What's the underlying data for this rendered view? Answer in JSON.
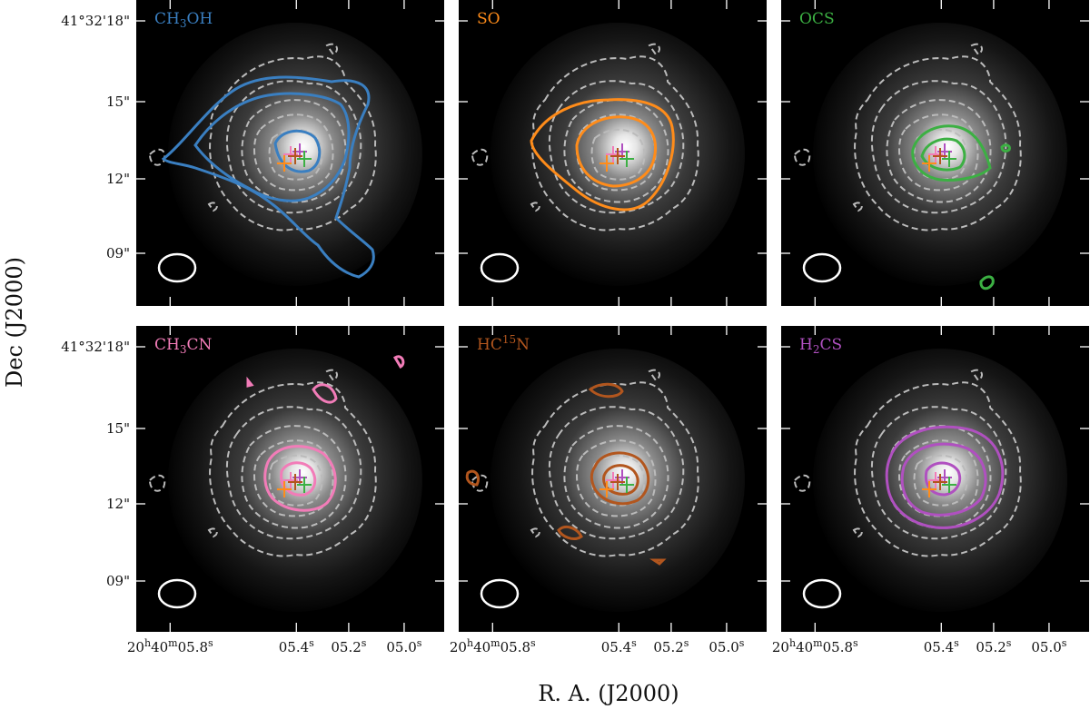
{
  "figure": {
    "xlabel": "R. A. (J2000)",
    "ylabel": "Dec (J2000)",
    "x_ticks": [
      {
        "h": "20",
        "m": "40",
        "s": "05.8",
        "sup": "s",
        "full": true,
        "ra_s": 5.8
      },
      {
        "label": "05.4",
        "sup": "s",
        "ra_s": 5.4
      },
      {
        "label": "05.2",
        "sup": "s",
        "ra_s": 5.2
      },
      {
        "label": "05.0",
        "sup": "s",
        "ra_s": 5.0
      }
    ],
    "y_ticks": [
      "41°32'18\"",
      "15\"",
      "12\"",
      "09\""
    ],
    "y_tick_arcsec": [
      18,
      15,
      12,
      9
    ]
  },
  "colors": {
    "CH3OH": "#3a7fc1",
    "SO": "#ff8c1a",
    "OCS": "#3cb043",
    "CH3CN": "#f27cb8",
    "HC15N": "#b2561e",
    "H2CS": "#b050c0",
    "dust_contour": "#bbbbbb",
    "beam": "#ffffff"
  },
  "chart_data": [
    {
      "type": "contour",
      "panel": 1,
      "molecule": "CH3OH",
      "label_main": "CH",
      "label_sub": "3",
      "label_rest": "OH",
      "color": "#3a7fc1",
      "contour_levels": 3
    },
    {
      "type": "contour",
      "panel": 2,
      "molecule": "SO",
      "label_main": "SO",
      "label_sub": "",
      "label_rest": "",
      "color": "#ff8c1a",
      "contour_levels": 2
    },
    {
      "type": "contour",
      "panel": 3,
      "molecule": "OCS",
      "label_main": "OCS",
      "label_sub": "",
      "label_rest": "",
      "color": "#3cb043",
      "contour_levels": 2
    },
    {
      "type": "contour",
      "panel": 4,
      "molecule": "CH3CN",
      "label_main": "CH",
      "label_sub": "3",
      "label_rest": "CN",
      "color": "#f27cb8",
      "contour_levels": 2
    },
    {
      "type": "contour",
      "panel": 5,
      "molecule": "HC15N",
      "label_main": "HC",
      "label_sup": "15",
      "label_rest": "N",
      "color": "#b2561e",
      "contour_levels": 2
    },
    {
      "type": "contour",
      "panel": 6,
      "molecule": "H2CS",
      "label_main": "H",
      "label_sub": "2",
      "label_rest": "CS",
      "color": "#b050c0",
      "contour_levels": 2
    }
  ],
  "markers": [
    {
      "name": "orange-cross",
      "color": "#ff8c1a"
    },
    {
      "name": "pink-cross",
      "color": "#f27cb8"
    },
    {
      "name": "purple-cross",
      "color": "#b050c0"
    },
    {
      "name": "brown-cross",
      "color": "#b2561e"
    },
    {
      "name": "green-cross",
      "color": "#3cb043"
    }
  ]
}
